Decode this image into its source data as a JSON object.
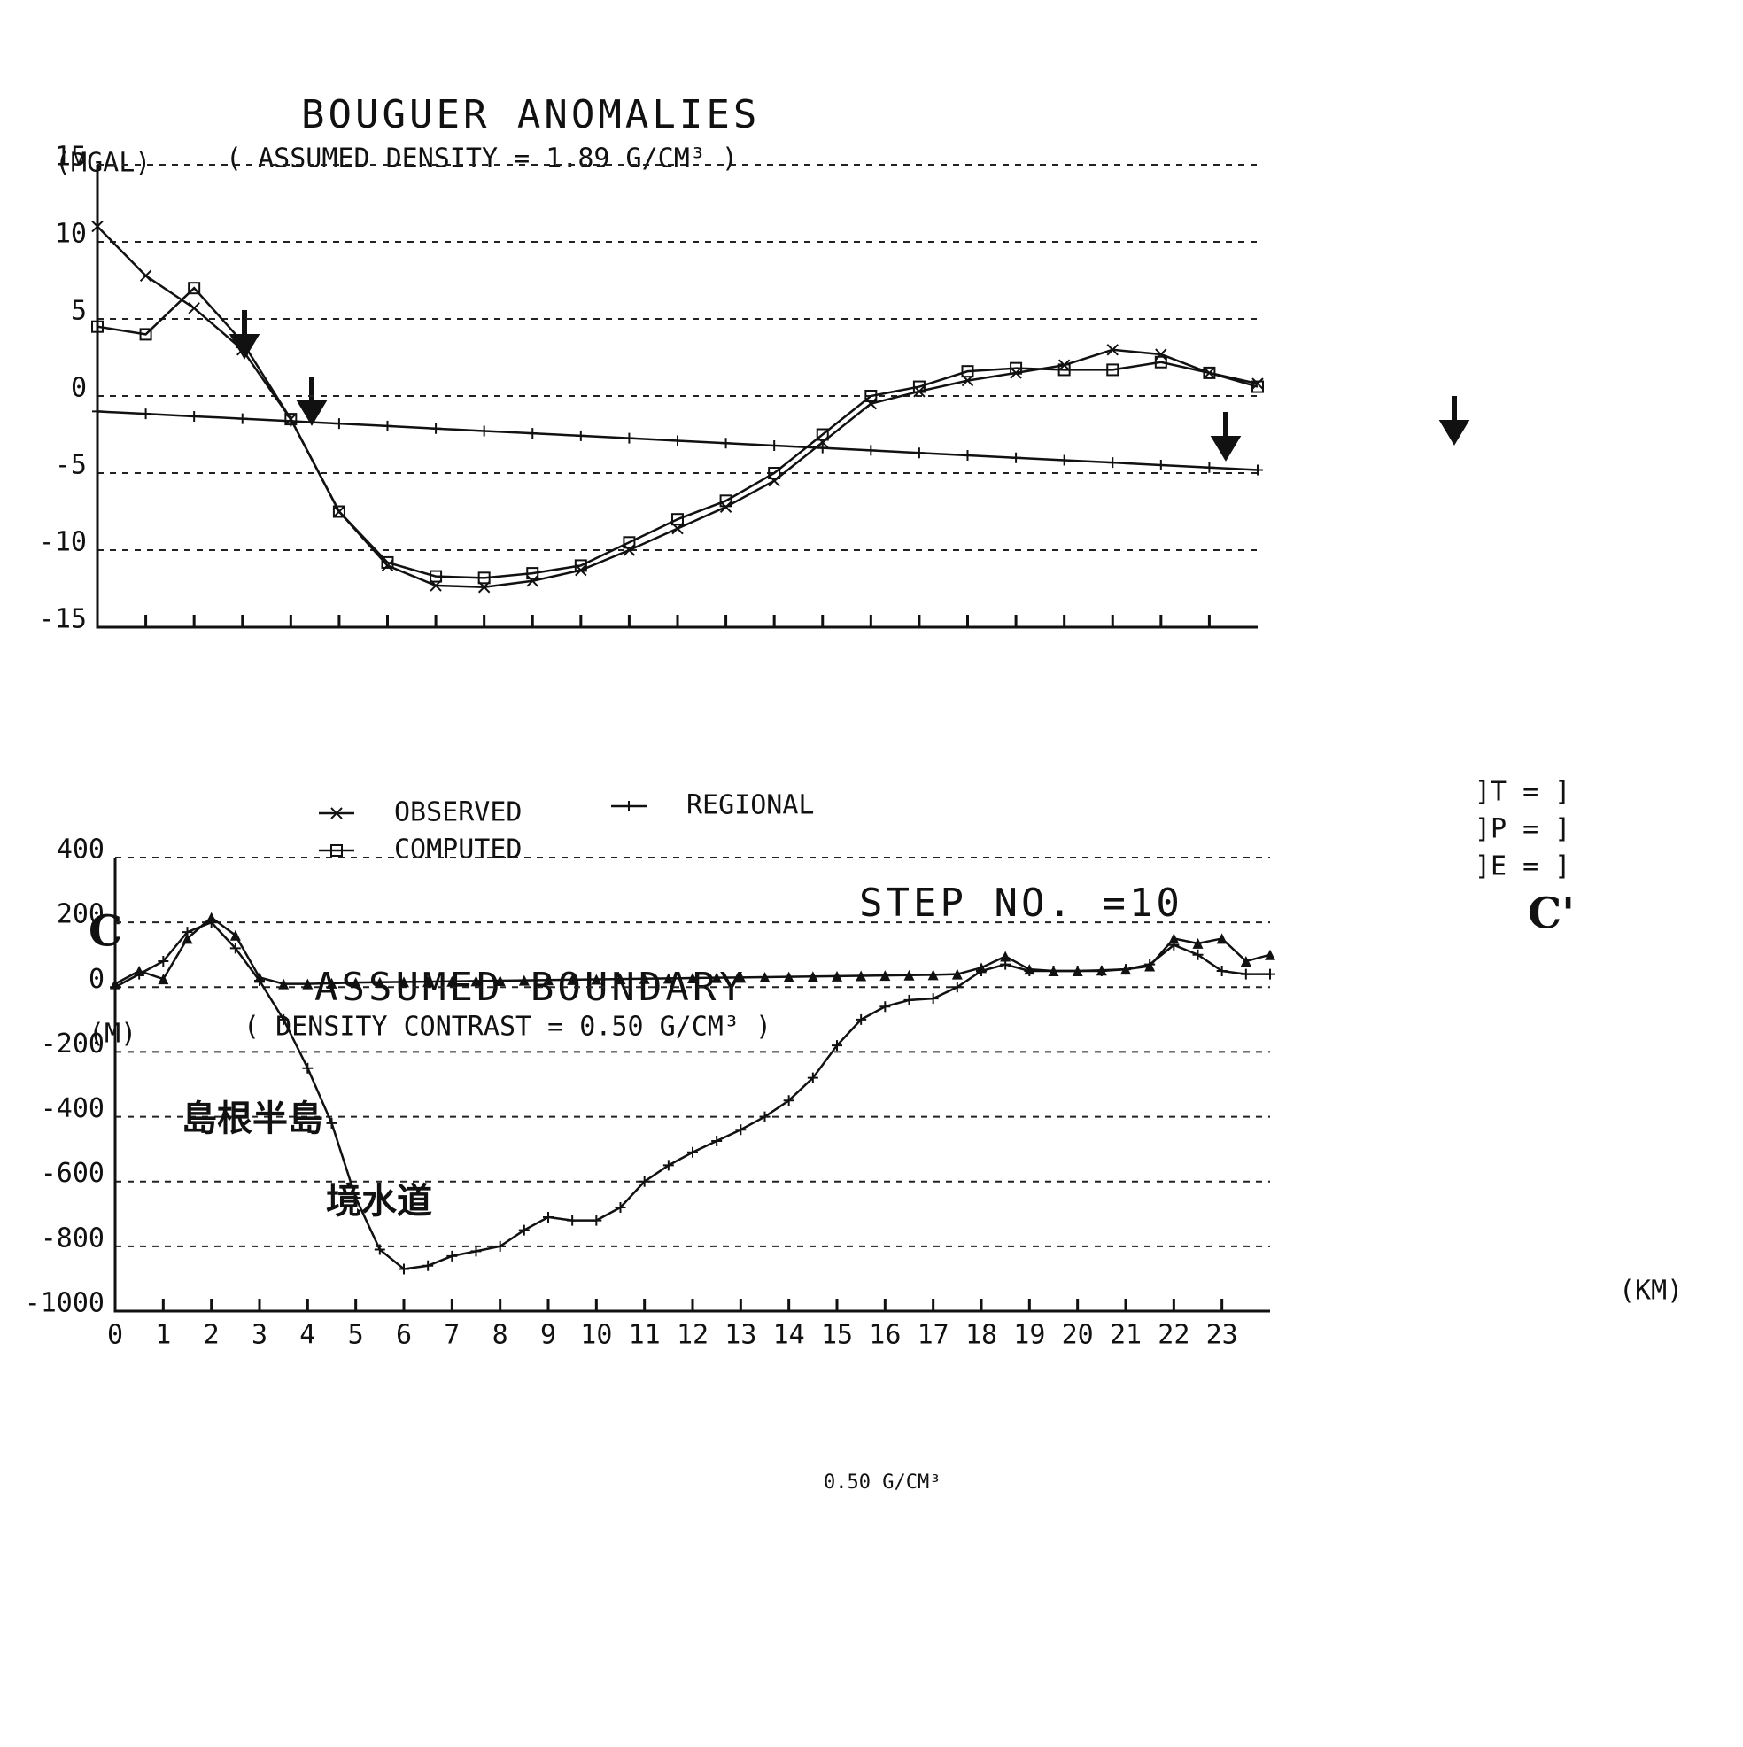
{
  "chart_data": [
    {
      "type": "line",
      "title": "BOUGUER ANOMALIES",
      "ylabel": "(MGAL)",
      "subtitle": "( ASSUMED DENSITY = 1.89  G/CM³ )",
      "xlim": [
        0,
        24
      ],
      "ylim": [
        -15,
        15
      ],
      "yticks": [
        15,
        10,
        5,
        0,
        -5,
        -10,
        -15
      ],
      "grid": true,
      "x": [
        0,
        1,
        2,
        3,
        4,
        5,
        6,
        7,
        8,
        9,
        10,
        11,
        12,
        13,
        14,
        15,
        16,
        17,
        18,
        19,
        20,
        21,
        22,
        23,
        24
      ],
      "series": [
        {
          "name": "OBSERVED",
          "color": "#111",
          "marker": "x",
          "values": [
            11,
            7.8,
            5.7,
            3,
            -1.5,
            -7.5,
            -11,
            -12.3,
            -12.4,
            -12,
            -11.3,
            -10,
            -8.6,
            -7.2,
            -5.5,
            -3,
            -0.5,
            0.3,
            1,
            1.5,
            2,
            3,
            2.7,
            1.5,
            0.8
          ]
        },
        {
          "name": "COMPUTED",
          "color": "#111",
          "marker": "square",
          "values": [
            4.5,
            4,
            7,
            3.5,
            -1.5,
            -7.5,
            -10.8,
            -11.7,
            -11.8,
            -11.5,
            -11,
            -9.5,
            -8,
            -6.8,
            -5,
            -2.5,
            0,
            0.6,
            1.6,
            1.8,
            1.7,
            1.7,
            2.2,
            1.5,
            0.6
          ]
        },
        {
          "name": "REGIONAL",
          "color": "#111",
          "marker": "plus",
          "values": [
            -1,
            -1.16,
            -1.32,
            -1.47,
            -1.63,
            -1.79,
            -1.95,
            -2.11,
            -2.27,
            -2.42,
            -2.58,
            -2.74,
            -2.9,
            -3.06,
            -3.22,
            -3.37,
            -3.53,
            -3.69,
            -3.85,
            -4.01,
            -4.17,
            -4.32,
            -4.48,
            -4.64,
            -4.8
          ]
        }
      ],
      "flags": [
        "]T = ]",
        "]P = ]",
        "]E = ]"
      ]
    },
    {
      "type": "line",
      "title": "ASSUMED BOUNDARY",
      "ylabel": "(M)",
      "subtitle": "( DENSITY CONTRAST = 0.50  G/CM³ )",
      "xlabel": "(KM)",
      "xlim": [
        0,
        24
      ],
      "ylim": [
        -1000,
        400
      ],
      "xticks": [
        0,
        1,
        2,
        3,
        4,
        5,
        6,
        7,
        8,
        9,
        10,
        11,
        12,
        13,
        14,
        15,
        16,
        17,
        18,
        19,
        20,
        21,
        22,
        23
      ],
      "yticks": [
        400,
        200,
        0,
        -200,
        -400,
        -600,
        -800,
        -1000
      ],
      "grid": true,
      "x": [
        0,
        0.5,
        1,
        1.5,
        2,
        2.5,
        3,
        3.5,
        4,
        4.5,
        5,
        5.5,
        6,
        6.5,
        7,
        7.5,
        8,
        8.5,
        9,
        9.5,
        10,
        10.5,
        11,
        11.5,
        12,
        12.5,
        13,
        13.5,
        14,
        14.5,
        15,
        15.5,
        16,
        16.5,
        17,
        17.5,
        18,
        18.5,
        19,
        19.5,
        20,
        20.5,
        21,
        21.5,
        22,
        22.5,
        23,
        23.5,
        24
      ],
      "series": [
        {
          "color": "#111",
          "marker": "plus",
          "values": [
            0,
            40,
            80,
            170,
            200,
            120,
            20,
            -100,
            -250,
            -420,
            -650,
            -810,
            -870,
            -860,
            -830,
            -815,
            -800,
            -750,
            -710,
            -720,
            -720,
            -680,
            -600,
            -550,
            -510,
            -475,
            -440,
            -400,
            -350,
            -280,
            -180,
            -100,
            -60,
            -40,
            -35,
            0,
            50,
            70,
            50,
            50,
            50,
            50,
            55,
            70,
            130,
            100,
            50,
            40,
            40
          ]
        },
        {
          "color": "#111",
          "marker": "triangle",
          "values": [
            10,
            50,
            25,
            150,
            215,
            160,
            30,
            10,
            10,
            12,
            14,
            15,
            16,
            17,
            18,
            19,
            20,
            21,
            22,
            23,
            24,
            25,
            26,
            27,
            28,
            29,
            30,
            31,
            32,
            33,
            34,
            35,
            36,
            37,
            38,
            40,
            60,
            95,
            55,
            50,
            50,
            52,
            55,
            65,
            150,
            135,
            150,
            80,
            100
          ]
        }
      ],
      "annotations": [
        "島根半島",
        "境水道",
        "0.50 G/CM³"
      ]
    }
  ],
  "step": "STEP NO. =10",
  "section_start": "C",
  "section_end": "C'"
}
